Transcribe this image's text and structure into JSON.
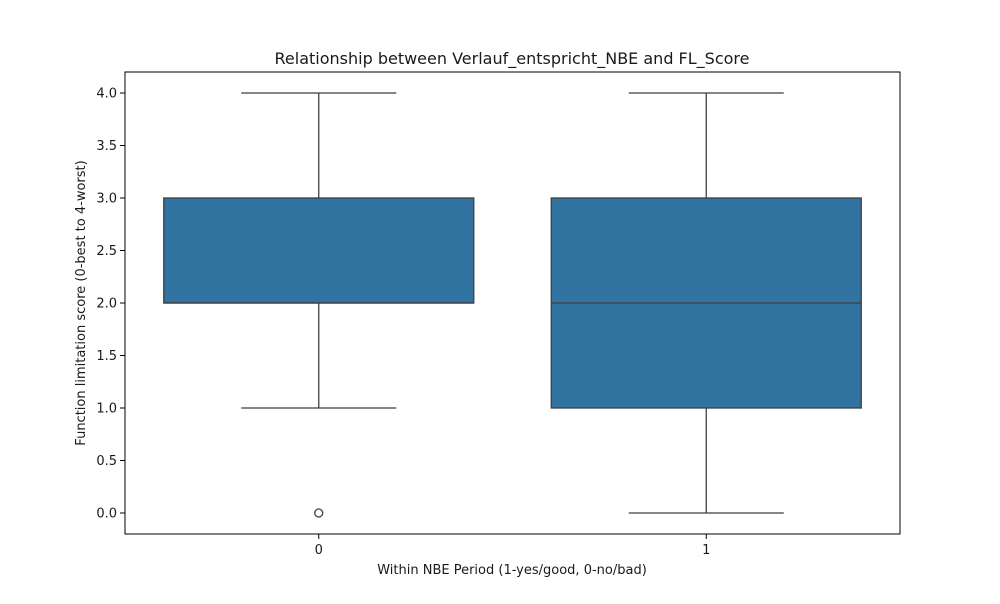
{
  "chart_data": {
    "type": "box",
    "title": "Relationship between Verlauf_entspricht_NBE and FL_Score",
    "xlabel": "Within NBE Period (1-yes/good, 0-no/bad)",
    "ylabel": "Function limitation score (0-best to 4-worst)",
    "categories": [
      "0",
      "1"
    ],
    "ylim": [
      -0.2,
      4.2
    ],
    "yticks": [
      "0.0",
      "0.5",
      "1.0",
      "1.5",
      "2.0",
      "2.5",
      "3.0",
      "3.5",
      "4.0"
    ],
    "boxes": [
      {
        "category": "0",
        "whisker_low": 1.0,
        "q1": 2.0,
        "median": 2.0,
        "q3": 3.0,
        "whisker_high": 4.0,
        "outliers": [
          0.0
        ]
      },
      {
        "category": "1",
        "whisker_low": 0.0,
        "q1": 1.0,
        "median": 2.0,
        "q3": 3.0,
        "whisker_high": 4.0,
        "outliers": []
      }
    ],
    "box_color": "#3274a1",
    "line_color": "#3f3f3f",
    "grid": false
  }
}
